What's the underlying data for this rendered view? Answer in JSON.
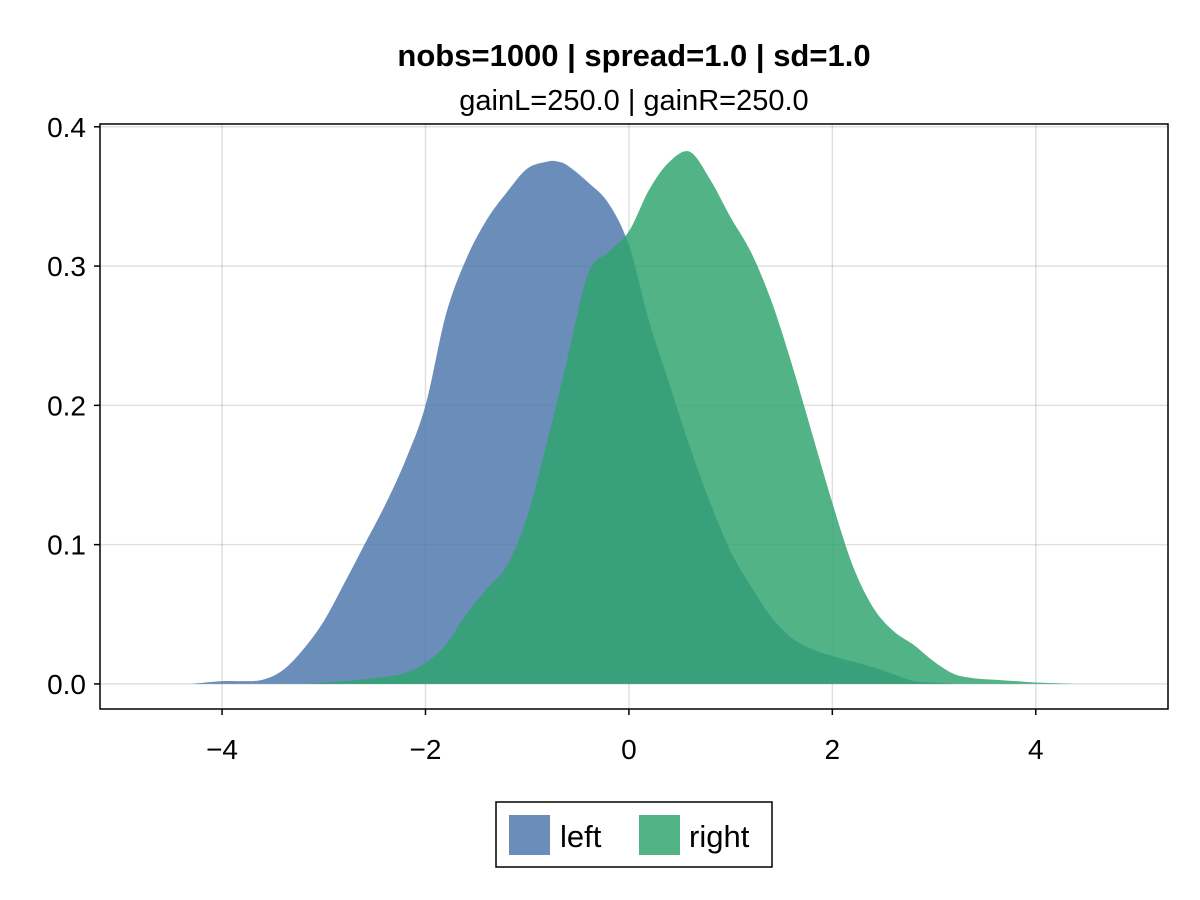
{
  "chart_data": {
    "type": "area",
    "title": "nobs=1000 | spread=1.0 | sd=1.0",
    "subtitle": "gainL=250.0 | gainR=250.0",
    "xlim": [
      -5.2,
      5.3
    ],
    "ylim": [
      -0.018,
      0.402
    ],
    "x_ticks": [
      -4,
      -2,
      0,
      2,
      4
    ],
    "x_tick_labels": [
      "−4",
      "−2",
      "0",
      "2",
      "4"
    ],
    "y_ticks": [
      0.0,
      0.1,
      0.2,
      0.3,
      0.4
    ],
    "y_tick_labels": [
      "0.0",
      "0.1",
      "0.2",
      "0.3",
      "0.4"
    ],
    "grid": true,
    "legend_position": "bottom-center",
    "series": [
      {
        "name": "left",
        "color": "#4c77ab",
        "opacity": 0.83,
        "x": [
          -4.3,
          -4.0,
          -3.8,
          -3.6,
          -3.4,
          -3.2,
          -3.0,
          -2.8,
          -2.6,
          -2.4,
          -2.2,
          -2.0,
          -1.8,
          -1.6,
          -1.4,
          -1.2,
          -1.0,
          -0.8,
          -0.7,
          -0.6,
          -0.4,
          -0.2,
          0.0,
          0.2,
          0.4,
          0.6,
          0.8,
          1.0,
          1.2,
          1.4,
          1.6,
          1.8,
          2.0,
          2.2,
          2.4,
          2.6,
          2.8,
          3.0,
          3.2
        ],
        "y": [
          0.0,
          0.002,
          0.002,
          0.003,
          0.01,
          0.025,
          0.045,
          0.072,
          0.1,
          0.128,
          0.16,
          0.2,
          0.265,
          0.305,
          0.333,
          0.353,
          0.37,
          0.375,
          0.375,
          0.372,
          0.36,
          0.345,
          0.315,
          0.26,
          0.215,
          0.17,
          0.13,
          0.095,
          0.07,
          0.048,
          0.033,
          0.025,
          0.02,
          0.016,
          0.012,
          0.007,
          0.002,
          0.001,
          0.0
        ]
      },
      {
        "name": "right",
        "color": "#2ea46e",
        "opacity": 0.83,
        "x": [
          -3.2,
          -2.8,
          -2.4,
          -2.2,
          -2.0,
          -1.8,
          -1.6,
          -1.4,
          -1.2,
          -1.0,
          -0.8,
          -0.6,
          -0.4,
          -0.2,
          0.0,
          0.2,
          0.4,
          0.6,
          0.8,
          1.0,
          1.2,
          1.4,
          1.6,
          1.8,
          2.0,
          2.2,
          2.4,
          2.6,
          2.8,
          3.0,
          3.2,
          3.4,
          3.6,
          3.8,
          4.0,
          4.4
        ],
        "y": [
          0.0,
          0.002,
          0.005,
          0.008,
          0.015,
          0.028,
          0.05,
          0.068,
          0.085,
          0.12,
          0.175,
          0.235,
          0.295,
          0.31,
          0.325,
          0.355,
          0.375,
          0.382,
          0.362,
          0.335,
          0.31,
          0.275,
          0.23,
          0.18,
          0.13,
          0.085,
          0.055,
          0.038,
          0.028,
          0.016,
          0.007,
          0.004,
          0.003,
          0.002,
          0.001,
          0.0
        ]
      }
    ]
  }
}
